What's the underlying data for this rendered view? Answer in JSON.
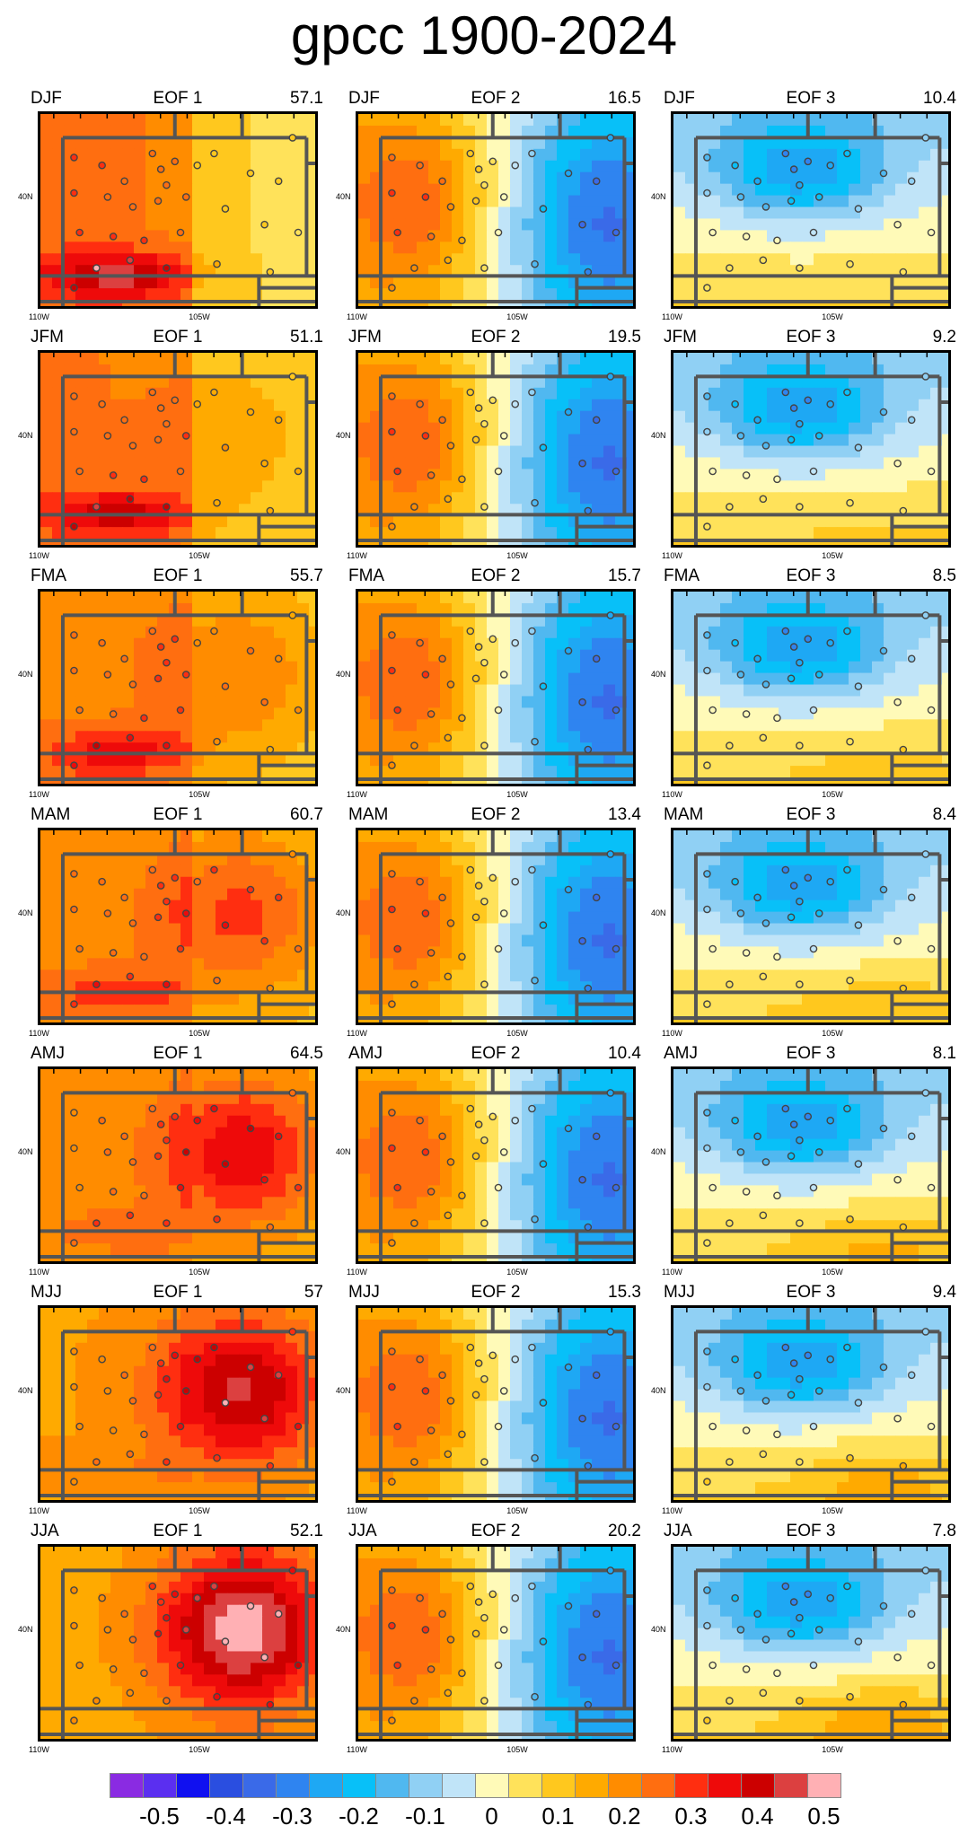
{
  "title": "gpcc 1900-2024",
  "axis_labels": {
    "lat": "40N",
    "lon_left": "110W",
    "lon_mid": "105W"
  },
  "chart_data": {
    "type": "heatmap",
    "title": "gpcc 1900-2024",
    "rows": [
      "DJF",
      "JFM",
      "FMA",
      "MAM",
      "AMJ",
      "MJJ",
      "JJA"
    ],
    "columns": [
      "EOF 1",
      "EOF 2",
      "EOF 3"
    ],
    "panels": [
      [
        {
          "season": "DJF",
          "eof": "EOF 1",
          "pct": "57.1"
        },
        {
          "season": "DJF",
          "eof": "EOF 2",
          "pct": "16.5"
        },
        {
          "season": "DJF",
          "eof": "EOF 3",
          "pct": "10.4"
        }
      ],
      [
        {
          "season": "JFM",
          "eof": "EOF 1",
          "pct": "51.1"
        },
        {
          "season": "JFM",
          "eof": "EOF 2",
          "pct": "19.5"
        },
        {
          "season": "JFM",
          "eof": "EOF 3",
          "pct": "9.2"
        }
      ],
      [
        {
          "season": "FMA",
          "eof": "EOF 1",
          "pct": "55.7"
        },
        {
          "season": "FMA",
          "eof": "EOF 2",
          "pct": "15.7"
        },
        {
          "season": "FMA",
          "eof": "EOF 3",
          "pct": "8.5"
        }
      ],
      [
        {
          "season": "MAM",
          "eof": "EOF 1",
          "pct": "60.7"
        },
        {
          "season": "MAM",
          "eof": "EOF 2",
          "pct": "13.4"
        },
        {
          "season": "MAM",
          "eof": "EOF 3",
          "pct": "8.4"
        }
      ],
      [
        {
          "season": "AMJ",
          "eof": "EOF 1",
          "pct": "64.5"
        },
        {
          "season": "AMJ",
          "eof": "EOF 2",
          "pct": "10.4"
        },
        {
          "season": "AMJ",
          "eof": "EOF 3",
          "pct": "8.1"
        }
      ],
      [
        {
          "season": "MJJ",
          "eof": "EOF 1",
          "pct": "57"
        },
        {
          "season": "MJJ",
          "eof": "EOF 2",
          "pct": "15.3"
        },
        {
          "season": "MJJ",
          "eof": "EOF 3",
          "pct": "9.4"
        }
      ],
      [
        {
          "season": "JJA",
          "eof": "EOF 1",
          "pct": "52.1"
        },
        {
          "season": "JJA",
          "eof": "EOF 2",
          "pct": "20.2"
        },
        {
          "season": "JJA",
          "eof": "EOF 3",
          "pct": "7.8"
        }
      ]
    ],
    "colorbar": {
      "levels": [
        -0.55,
        -0.5,
        -0.45,
        -0.4,
        -0.35,
        -0.3,
        -0.25,
        -0.2,
        -0.15,
        -0.1,
        -0.05,
        0,
        0.05,
        0.1,
        0.15,
        0.2,
        0.25,
        0.3,
        0.35,
        0.4,
        0.45,
        0.5
      ],
      "colors": [
        "#8a2be2",
        "#5b2ff0",
        "#1010f0",
        "#2a4ee0",
        "#3a6ae8",
        "#2f84f0",
        "#1ea8f4",
        "#08c0f8",
        "#50b8f0",
        "#90d0f4",
        "#c0e4f8",
        "#fffab8",
        "#ffe25a",
        "#ffc81e",
        "#ffaa00",
        "#ff8c00",
        "#ff6e10",
        "#ff2e10",
        "#ee0a0a",
        "#cc0000",
        "#dc4040",
        "#ffb0b4"
      ],
      "tick_labels": [
        "-0.5",
        "-0.4",
        "-0.3",
        "-0.2",
        "-0.1",
        "0",
        "0.1",
        "0.2",
        "0.3",
        "0.4",
        "0.5"
      ],
      "tick_values": [
        -0.5,
        -0.4,
        -0.3,
        -0.2,
        -0.1,
        0,
        0.1,
        0.2,
        0.3,
        0.4,
        0.5
      ]
    },
    "xlim_lon": [
      -111,
      -100.5
    ],
    "ylim_lat": [
      36.2,
      42.9
    ],
    "lon_ticks": [
      -110,
      -105
    ],
    "lat_ticks": [
      40
    ]
  }
}
